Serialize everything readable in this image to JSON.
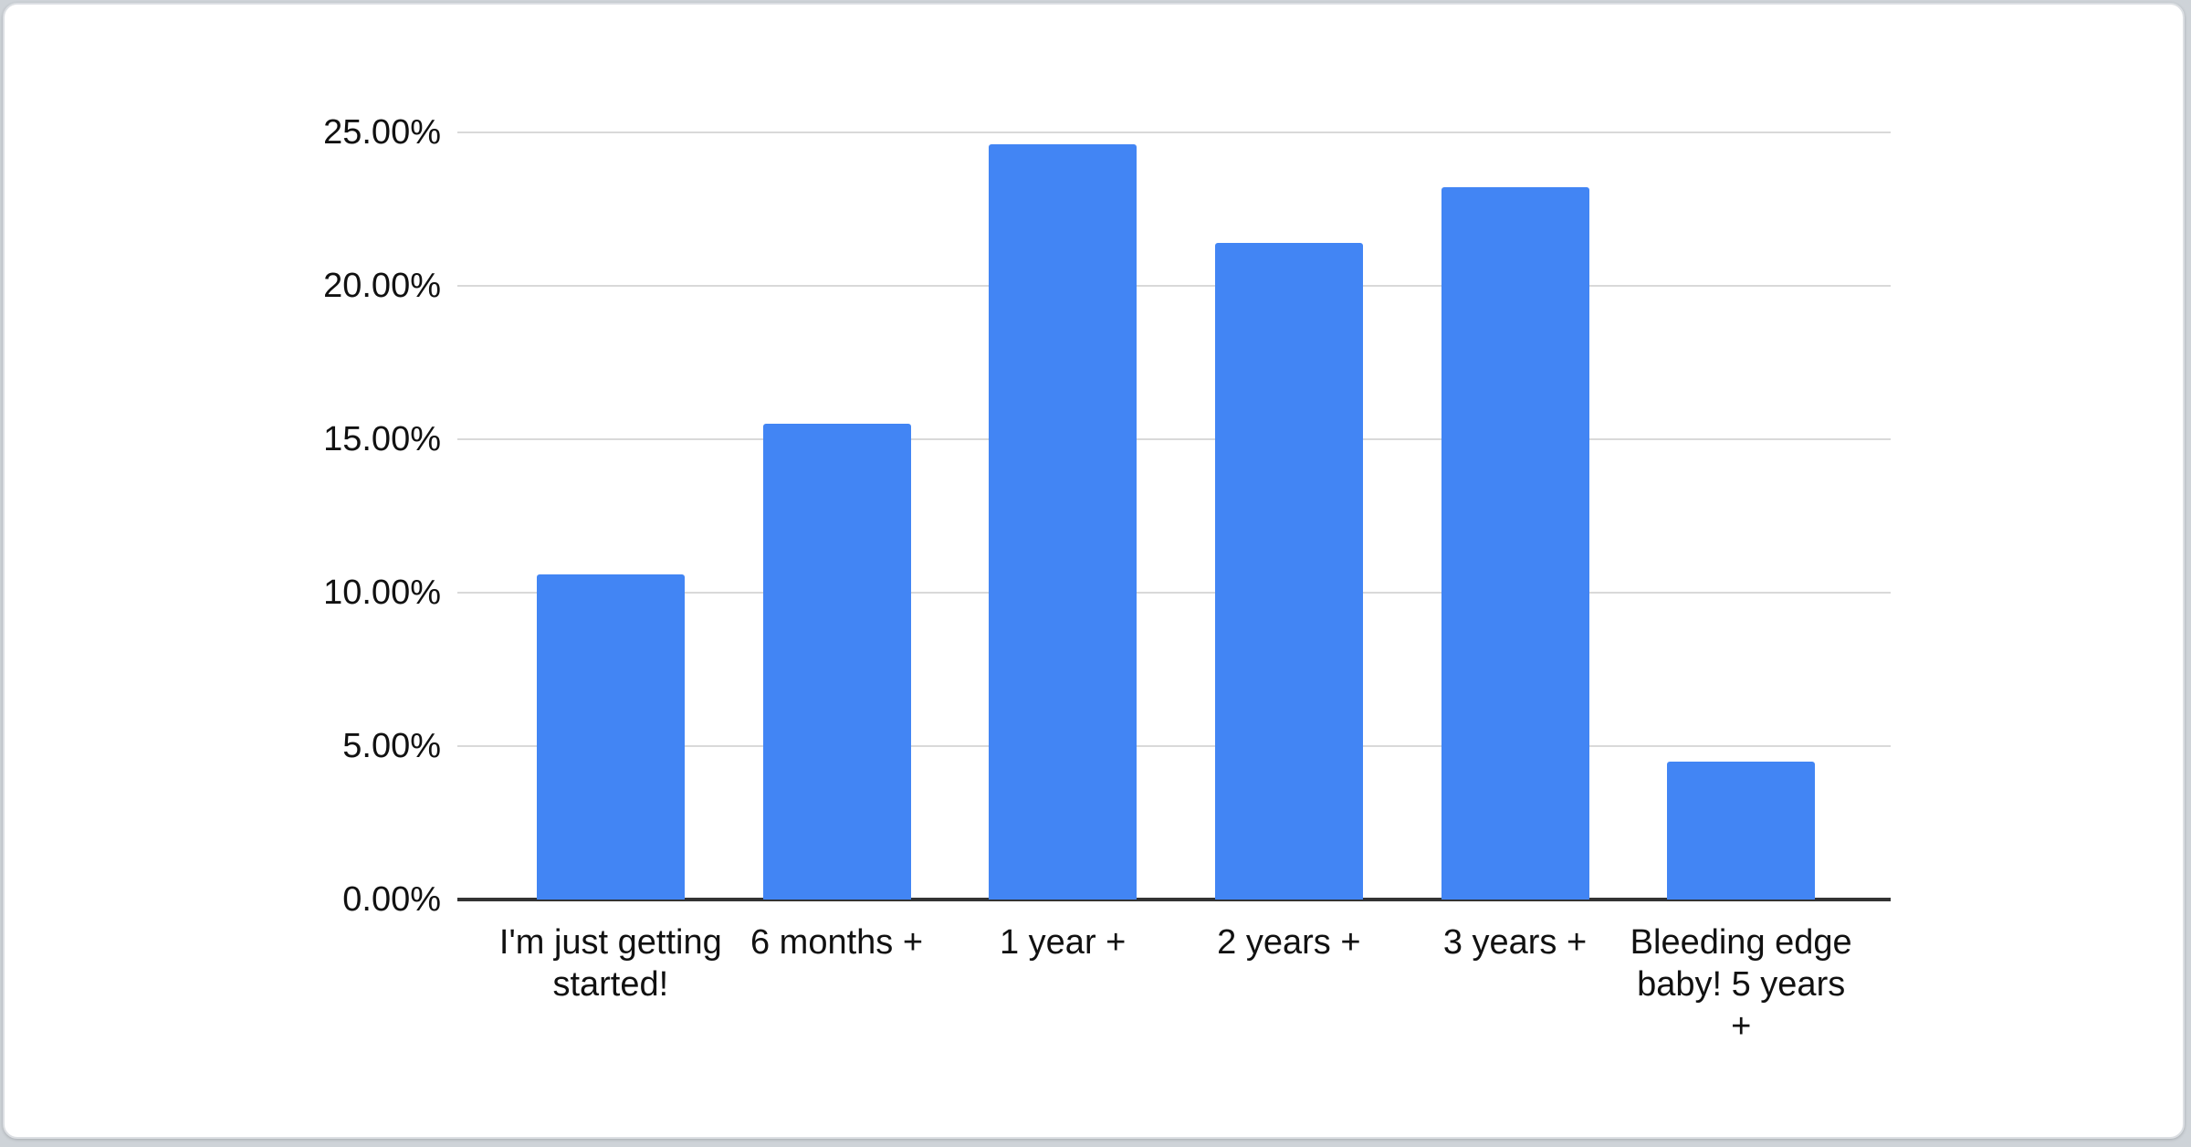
{
  "chart_data": {
    "type": "bar",
    "title": "",
    "xlabel": "",
    "ylabel": "",
    "categories": [
      "I'm just getting started!",
      "6 months +",
      "1 year +",
      "2 years +",
      "3 years +",
      "Bleeding edge baby! 5 years +"
    ],
    "values": [
      10.6,
      15.5,
      24.6,
      21.4,
      23.2,
      4.5
    ],
    "value_unit": "%",
    "ylim": [
      0,
      25
    ],
    "y_ticks": [
      {
        "label": "0.00%",
        "value": 0
      },
      {
        "label": "5.00%",
        "value": 5
      },
      {
        "label": "10.00%",
        "value": 10
      },
      {
        "label": "15.00%",
        "value": 15
      },
      {
        "label": "20.00%",
        "value": 20
      },
      {
        "label": "25.00%",
        "value": 25
      }
    ],
    "grid": true,
    "legend_position": "none",
    "colors": {
      "bar": "#4285f4",
      "gridline": "#d9d9d9",
      "axis_line": "#333333",
      "tick_text": "#111111",
      "card_background": "#ffffff",
      "card_border": "#dcdfe3",
      "page_background": "#ced3d8"
    }
  }
}
